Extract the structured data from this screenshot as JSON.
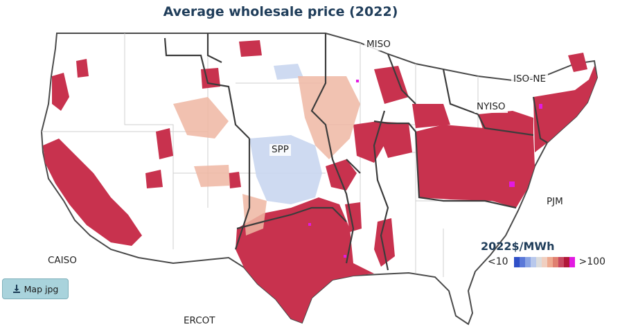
{
  "title": "Average wholesale price (2022)",
  "regions": {
    "miso": "MISO",
    "iso_ne": "ISO-NE",
    "nyiso": "NYISO",
    "spp": "SPP",
    "pjm": "PJM",
    "caiso": "CAISO",
    "ercot": "ERCOT"
  },
  "legend": {
    "title": "2022$/MWh",
    "min_label": "<10",
    "max_label": ">100",
    "colors": [
      "#3050c8",
      "#5a78d8",
      "#8aa4e4",
      "#b8c8ec",
      "#dcdcdc",
      "#f0cfc0",
      "#eeaa90",
      "#e08070",
      "#c84860",
      "#b01838",
      "#e21ae2"
    ]
  },
  "download_button": {
    "label": "Map jpg",
    "icon": "download-icon"
  },
  "colors": {
    "high_price": "#c8324e",
    "title": "#1f3d5a",
    "boundary": "#3c3c3c",
    "state_line": "#c8c8c8"
  }
}
